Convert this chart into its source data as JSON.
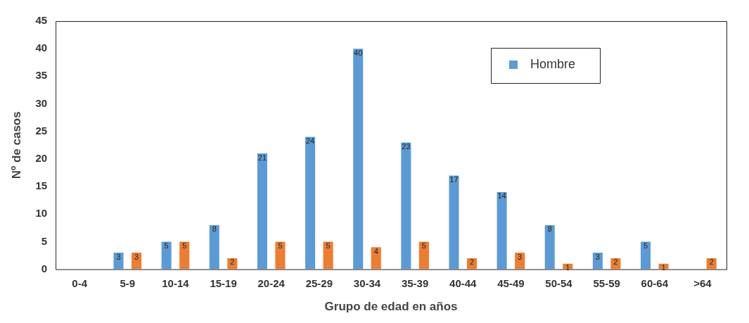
{
  "chart_data": {
    "type": "bar",
    "xlabel": "Grupo de edad en años",
    "ylabel": "Nº de casos",
    "categories": [
      "0-4",
      "5-9",
      "10-14",
      "15-19",
      "20-24",
      "25-29",
      "30-34",
      "35-39",
      "40-44",
      "45-49",
      "50-54",
      "55-59",
      "60-64",
      ">64"
    ],
    "series": [
      {
        "name": "Hombre",
        "color": "#5b9bd5",
        "values": [
          null,
          3,
          5,
          8,
          21,
          24,
          40,
          23,
          17,
          14,
          8,
          3,
          5,
          null
        ]
      },
      {
        "color": "#ed7d31",
        "values": [
          null,
          3,
          5,
          2,
          5,
          5,
          4,
          5,
          2,
          3,
          1,
          2,
          1,
          2
        ]
      }
    ],
    "ylim": [
      0,
      45
    ],
    "yticks": [
      0,
      5,
      10,
      15,
      20,
      25,
      30,
      35,
      40,
      45
    ],
    "grid": false,
    "legend": "top right",
    "data_labels": true
  }
}
